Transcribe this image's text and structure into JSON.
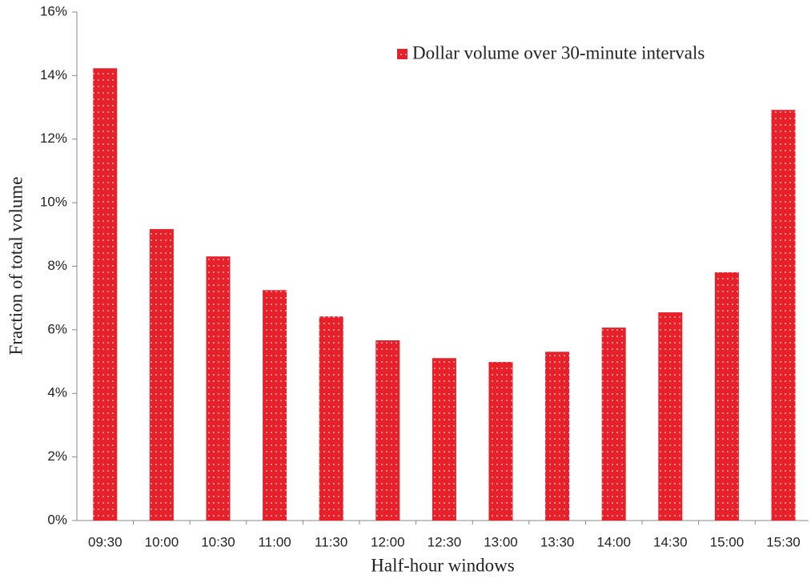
{
  "chart_data": {
    "type": "bar",
    "xlabel": "Half-hour windows",
    "ylabel": "Fraction of total volume",
    "categories": [
      "09:30",
      "10:00",
      "10:30",
      "11:00",
      "11:30",
      "12:00",
      "12:30",
      "13:00",
      "13:30",
      "14:00",
      "14:30",
      "15:00",
      "15:30"
    ],
    "series": [
      {
        "name": "Dollar volume over 30-minute intervals",
        "color": "#e8202a",
        "values": [
          14.23,
          9.17,
          8.31,
          7.25,
          6.42,
          5.67,
          5.11,
          4.99,
          5.31,
          6.07,
          6.55,
          7.81,
          12.92
        ]
      }
    ],
    "ylim": [
      0,
      16
    ],
    "yticks": [
      {
        "value": 0,
        "label": "0%"
      },
      {
        "value": 2,
        "label": "2%"
      },
      {
        "value": 4,
        "label": "4%"
      },
      {
        "value": 6,
        "label": "6%"
      },
      {
        "value": 8,
        "label": "8%"
      },
      {
        "value": 10,
        "label": "10%"
      },
      {
        "value": 12,
        "label": "12%"
      },
      {
        "value": 14,
        "label": "14%"
      },
      {
        "value": 16,
        "label": "16%"
      }
    ],
    "grid": false,
    "legend": "upper right"
  }
}
